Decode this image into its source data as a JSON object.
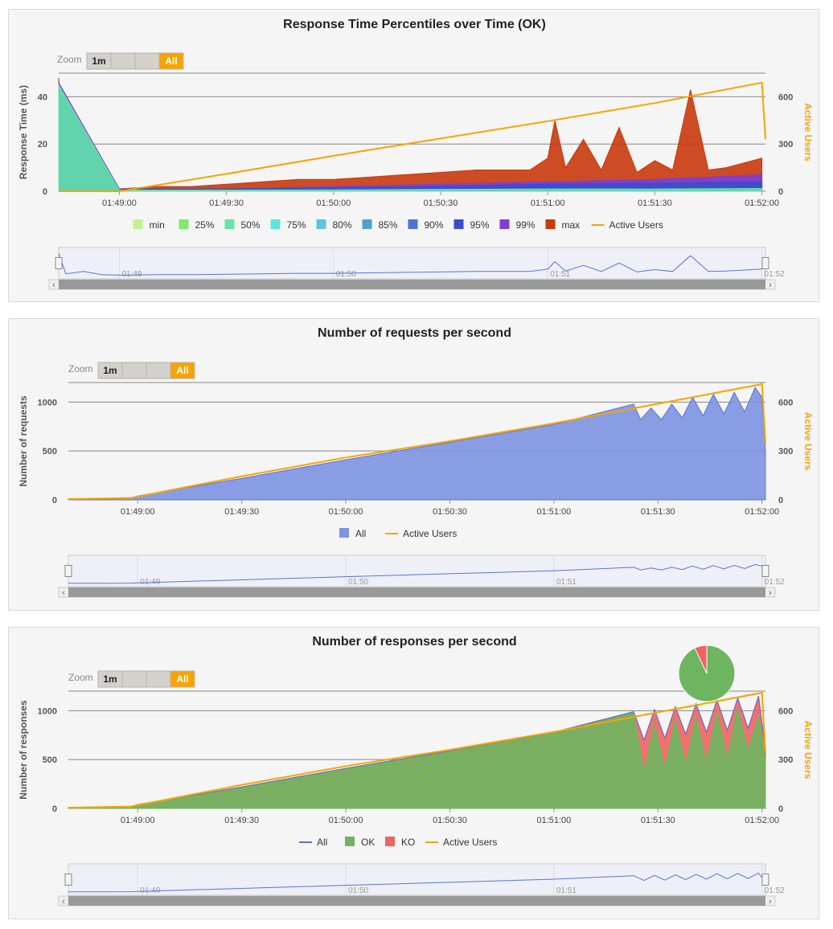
{
  "zoom": {
    "label": "Zoom",
    "buttons": [
      "1m",
      "",
      "",
      "All"
    ],
    "active": "All"
  },
  "x_ticks": [
    "01:49:00",
    "01:49:30",
    "01:50:00",
    "01:50:30",
    "01:51:00",
    "01:51:30",
    "01:52:00"
  ],
  "nav_ticks": [
    "01:49",
    "01:50",
    "01:51",
    "01:52"
  ],
  "colors": {
    "min": "#c5f28f",
    "p25": "#85e76b",
    "p50": "#66e3a8",
    "p75": "#5ee4da",
    "p80": "#5bc5df",
    "p85": "#4ea0d2",
    "p90": "#4d73d4",
    "p95": "#3b4dcd",
    "p99": "#7f3dd6",
    "max": "#c93a0c",
    "users": "#f8a300",
    "requests": "#7d94e3",
    "ok": "#6db65f",
    "ko": "#ef6360",
    "all_line": "#5b72d6",
    "navigator_line": "#5b72d6"
  },
  "chart_data": [
    {
      "type": "area",
      "title": "Response Time Percentiles over Time (OK)",
      "ylabel": "Response Time (ms)",
      "y2label": "Active Users",
      "xlim": [
        "01:48:43",
        "01:52:01"
      ],
      "ylim": [
        0,
        50
      ],
      "y_ticks": [
        "0",
        "20",
        "40"
      ],
      "y2lim": [
        0,
        750
      ],
      "y2_ticks": [
        "0",
        "300",
        "600"
      ],
      "legend": [
        "min",
        "25%",
        "50%",
        "75%",
        "80%",
        "85%",
        "90%",
        "95%",
        "99%",
        "max",
        "Active Users"
      ],
      "legend_position": "bottom",
      "series": [
        {
          "name": "max",
          "x": [
            "01:48:43",
            "01:48:45",
            "01:48:50",
            "01:48:55",
            "01:49:00",
            "01:49:10",
            "01:49:20",
            "01:49:30",
            "01:49:40",
            "01:49:50",
            "01:50:00",
            "01:50:10",
            "01:50:20",
            "01:50:30",
            "01:50:40",
            "01:50:50",
            "01:50:55",
            "01:51:00",
            "01:51:02",
            "01:51:05",
            "01:51:10",
            "01:51:15",
            "01:51:20",
            "01:51:25",
            "01:51:30",
            "01:51:35",
            "01:51:40",
            "01:51:45",
            "01:51:50",
            "01:51:55",
            "01:52:00"
          ],
          "values": [
            48,
            4,
            9,
            2,
            1,
            2,
            2,
            3,
            4,
            5,
            5,
            6,
            7,
            8,
            9,
            9,
            9,
            14,
            30,
            10,
            22,
            9,
            27,
            8,
            13,
            9,
            43,
            9,
            10,
            12,
            14
          ]
        },
        {
          "name": "99%",
          "values_note_free": true,
          "x": [
            "01:48:43",
            "01:49:00",
            "01:49:30",
            "01:50:00",
            "01:50:30",
            "01:51:00",
            "01:51:30",
            "01:52:00"
          ],
          "values": [
            46,
            1,
            1,
            2,
            3,
            4,
            5,
            7
          ]
        },
        {
          "name": "95%",
          "x": [
            "01:48:43",
            "01:49:00",
            "01:49:30",
            "01:50:00",
            "01:50:30",
            "01:51:00",
            "01:51:30",
            "01:52:00"
          ],
          "values": [
            44,
            1,
            1,
            1.5,
            2,
            3,
            3.5,
            4
          ]
        },
        {
          "name": "50%",
          "x": [
            "01:48:43",
            "01:49:00",
            "01:49:30",
            "01:50:00",
            "01:50:30",
            "01:51:00",
            "01:51:30",
            "01:52:00"
          ],
          "values": [
            45,
            0.5,
            0.5,
            0.6,
            0.8,
            1,
            1,
            1.2
          ]
        },
        {
          "name": "Active Users",
          "x": [
            "01:48:43",
            "01:49:00",
            "01:49:30",
            "01:50:00",
            "01:50:30",
            "01:51:00",
            "01:51:30",
            "01:52:00",
            "01:52:01"
          ],
          "values": [
            0,
            0,
            110,
            225,
            335,
            445,
            560,
            690,
            330
          ]
        }
      ]
    },
    {
      "type": "area",
      "title": "Number of requests per second",
      "ylabel": "Number of requests",
      "y2label": "Active Users",
      "xlim": [
        "01:48:40",
        "01:52:01"
      ],
      "ylim": [
        0,
        1200
      ],
      "y_ticks": [
        "0",
        "500",
        "1000"
      ],
      "y2lim": [
        0,
        720
      ],
      "y2_ticks": [
        "0",
        "300",
        "600"
      ],
      "legend": [
        "All",
        "Active Users"
      ],
      "legend_position": "bottom",
      "series": [
        {
          "name": "All",
          "x": [
            "01:48:40",
            "01:48:58",
            "01:49:00",
            "01:49:30",
            "01:50:00",
            "01:50:30",
            "01:51:00",
            "01:51:23",
            "01:51:25",
            "01:51:28",
            "01:51:31",
            "01:51:34",
            "01:51:37",
            "01:51:40",
            "01:51:43",
            "01:51:46",
            "01:51:49",
            "01:51:52",
            "01:51:55",
            "01:51:58",
            "01:52:00",
            "01:52:01"
          ],
          "values": [
            10,
            20,
            40,
            220,
            410,
            590,
            770,
            980,
            820,
            940,
            820,
            980,
            840,
            1050,
            860,
            1080,
            880,
            1100,
            900,
            1150,
            1050,
            500
          ]
        },
        {
          "name": "Active Users",
          "x": [
            "01:48:40",
            "01:48:58",
            "01:49:30",
            "01:50:00",
            "01:50:30",
            "01:51:00",
            "01:51:30",
            "01:52:00",
            "01:52:01"
          ],
          "values": [
            5,
            12,
            145,
            260,
            360,
            470,
            590,
            710,
            340
          ]
        }
      ]
    },
    {
      "type": "area",
      "title": "Number of responses per second",
      "ylabel": "Number of responses",
      "y2label": "Active Users",
      "xlim": [
        "01:48:40",
        "01:52:01"
      ],
      "ylim": [
        0,
        1200
      ],
      "y_ticks": [
        "0",
        "500",
        "1000"
      ],
      "y2lim": [
        0,
        720
      ],
      "y2_ticks": [
        "0",
        "300",
        "600"
      ],
      "legend": [
        "All",
        "OK",
        "KO",
        "Active Users"
      ],
      "legend_position": "bottom",
      "pie": {
        "ok_percent": 93,
        "ko_percent": 7
      },
      "series": [
        {
          "name": "All",
          "x": [
            "01:48:40",
            "01:48:58",
            "01:49:00",
            "01:49:30",
            "01:50:00",
            "01:50:30",
            "01:51:00",
            "01:51:23",
            "01:51:26",
            "01:51:29",
            "01:51:32",
            "01:51:35",
            "01:51:38",
            "01:51:41",
            "01:51:44",
            "01:51:47",
            "01:51:50",
            "01:51:53",
            "01:51:56",
            "01:51:59",
            "01:52:01"
          ],
          "values": [
            10,
            20,
            40,
            220,
            410,
            590,
            780,
            990,
            700,
            1010,
            720,
            1040,
            760,
            1070,
            780,
            1110,
            800,
            1130,
            820,
            1150,
            600
          ]
        },
        {
          "name": "OK",
          "x": [
            "01:48:40",
            "01:48:58",
            "01:49:00",
            "01:49:30",
            "01:50:00",
            "01:50:30",
            "01:51:00",
            "01:51:23",
            "01:51:26",
            "01:51:29",
            "01:51:32",
            "01:51:35",
            "01:51:38",
            "01:51:41",
            "01:51:44",
            "01:51:47",
            "01:51:50",
            "01:51:53",
            "01:51:56",
            "01:51:59",
            "01:52:01"
          ],
          "values": [
            10,
            20,
            40,
            215,
            405,
            585,
            770,
            980,
            380,
            870,
            420,
            920,
            450,
            950,
            480,
            990,
            520,
            1030,
            600,
            950,
            500
          ]
        },
        {
          "name": "Active Users",
          "x": [
            "01:48:40",
            "01:48:58",
            "01:49:30",
            "01:50:00",
            "01:50:30",
            "01:51:00",
            "01:51:30",
            "01:52:00",
            "01:52:01"
          ],
          "values": [
            5,
            12,
            145,
            260,
            360,
            470,
            590,
            710,
            340
          ]
        }
      ]
    }
  ]
}
